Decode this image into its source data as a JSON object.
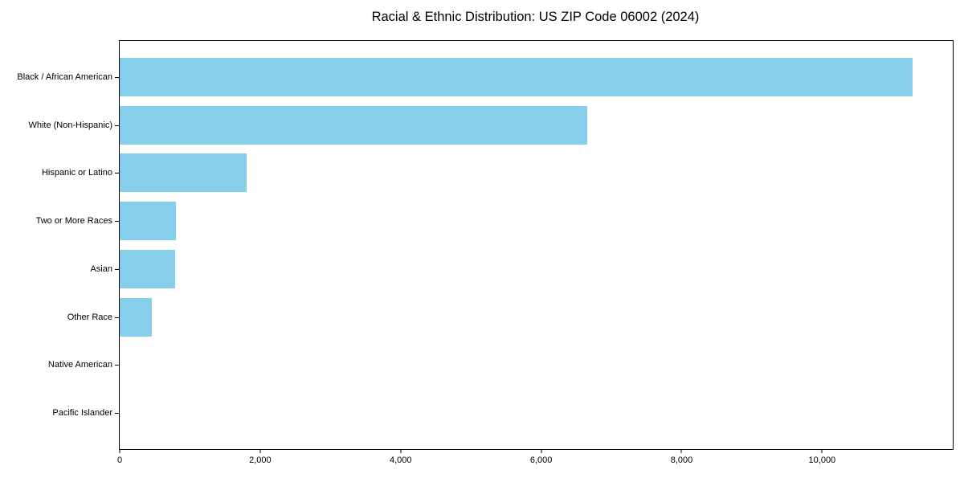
{
  "chart_data": {
    "type": "bar",
    "orientation": "horizontal",
    "title": "Racial & Ethnic Distribution: US ZIP Code 06002 (2024)",
    "categories": [
      "Black / African American",
      "White (Non-Hispanic)",
      "Hispanic or Latino",
      "Two or More Races",
      "Asian",
      "Other Race",
      "Native American",
      "Pacific Islander"
    ],
    "values": [
      11290,
      6660,
      1810,
      800,
      790,
      460,
      0,
      0
    ],
    "xlabel": "",
    "ylabel": "",
    "xlim": [
      0,
      11860
    ],
    "x_ticks": [
      0,
      2000,
      4000,
      6000,
      8000,
      10000
    ],
    "x_tick_labels": [
      "0",
      "2,000",
      "4,000",
      "6,000",
      "8,000",
      "10,000"
    ],
    "bar_color": "#87CEEB",
    "axis_color": "#000000",
    "background_color": "#ffffff",
    "grid": false,
    "legend": null
  }
}
